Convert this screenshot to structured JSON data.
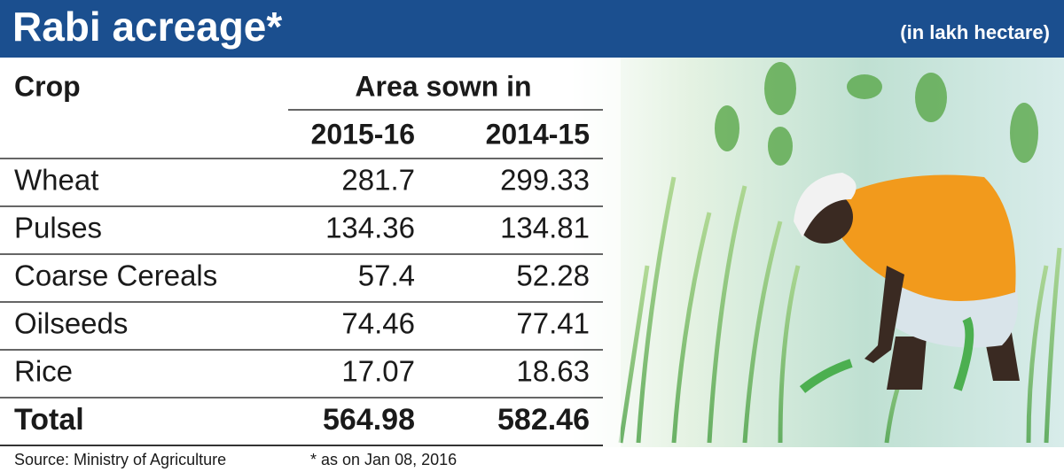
{
  "header": {
    "title": "Rabi acreage*",
    "unit": "(in lakh hectare)"
  },
  "table": {
    "columns": {
      "crop": "Crop",
      "group": "Area sown in",
      "years": [
        "2015-16",
        "2014-15"
      ]
    },
    "rows": [
      [
        "Wheat",
        281.7,
        299.33
      ],
      [
        "Pulses",
        134.36,
        134.81
      ],
      [
        "Coarse Cereals",
        57.4,
        52.28
      ],
      [
        "Oilseeds",
        74.46,
        77.41
      ],
      [
        "Rice",
        17.07,
        18.63
      ]
    ],
    "total": [
      "Total",
      564.98,
      582.46
    ]
  },
  "footer": {
    "source": "Source: Ministry of Agriculture",
    "note": "* as on Jan 08, 2016"
  }
}
